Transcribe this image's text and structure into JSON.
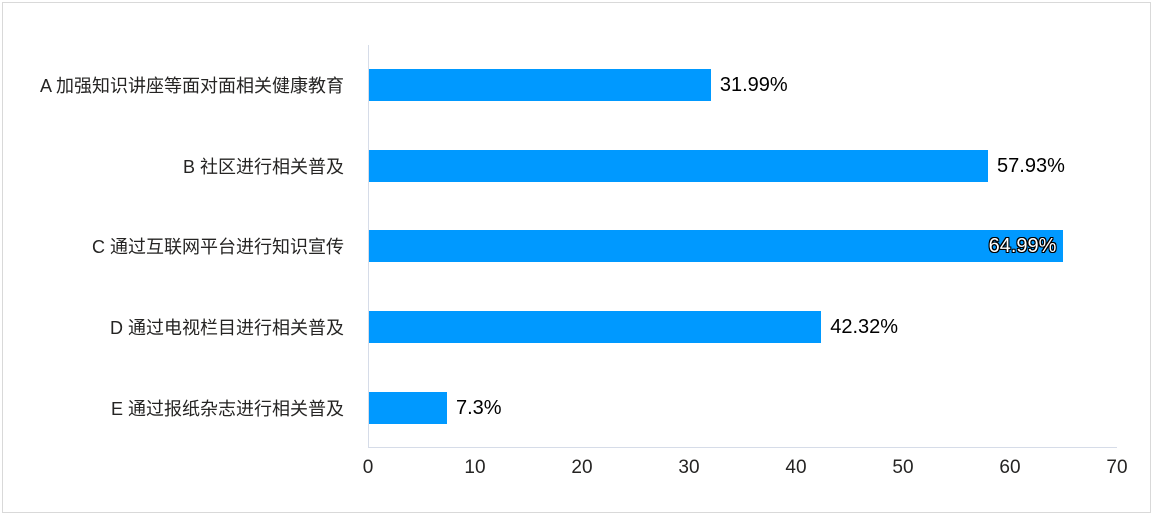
{
  "chart_data": {
    "type": "bar",
    "orientation": "horizontal",
    "title": "",
    "categories": [
      "A 加强知识讲座等面对面相关健康教育",
      "B 社区进行相关普及",
      "C 通过互联网平台进行知识宣传",
      "D 通过电视栏目进行相关普及",
      "E 通过报纸杂志进行相关普及"
    ],
    "values": [
      31.99,
      57.93,
      64.99,
      42.32,
      7.3
    ],
    "data_labels": [
      "31.99%",
      "57.93%",
      "64.99%",
      "42.32%",
      "7.3%"
    ],
    "data_label_positions": [
      "outside",
      "outside",
      "inside",
      "outside",
      "outside"
    ],
    "x_ticks": [
      "0",
      "10",
      "20",
      "30",
      "40",
      "50",
      "60",
      "70"
    ],
    "x_tick_values": [
      0,
      10,
      20,
      30,
      40,
      50,
      60,
      70
    ],
    "xlim": [
      0,
      70
    ],
    "grid": false,
    "legend": false,
    "bar_color": "#0099ff",
    "axis_line_color": "#d6dce8",
    "text_color": "#252423",
    "inside_label_text_color": "#ffffff"
  }
}
